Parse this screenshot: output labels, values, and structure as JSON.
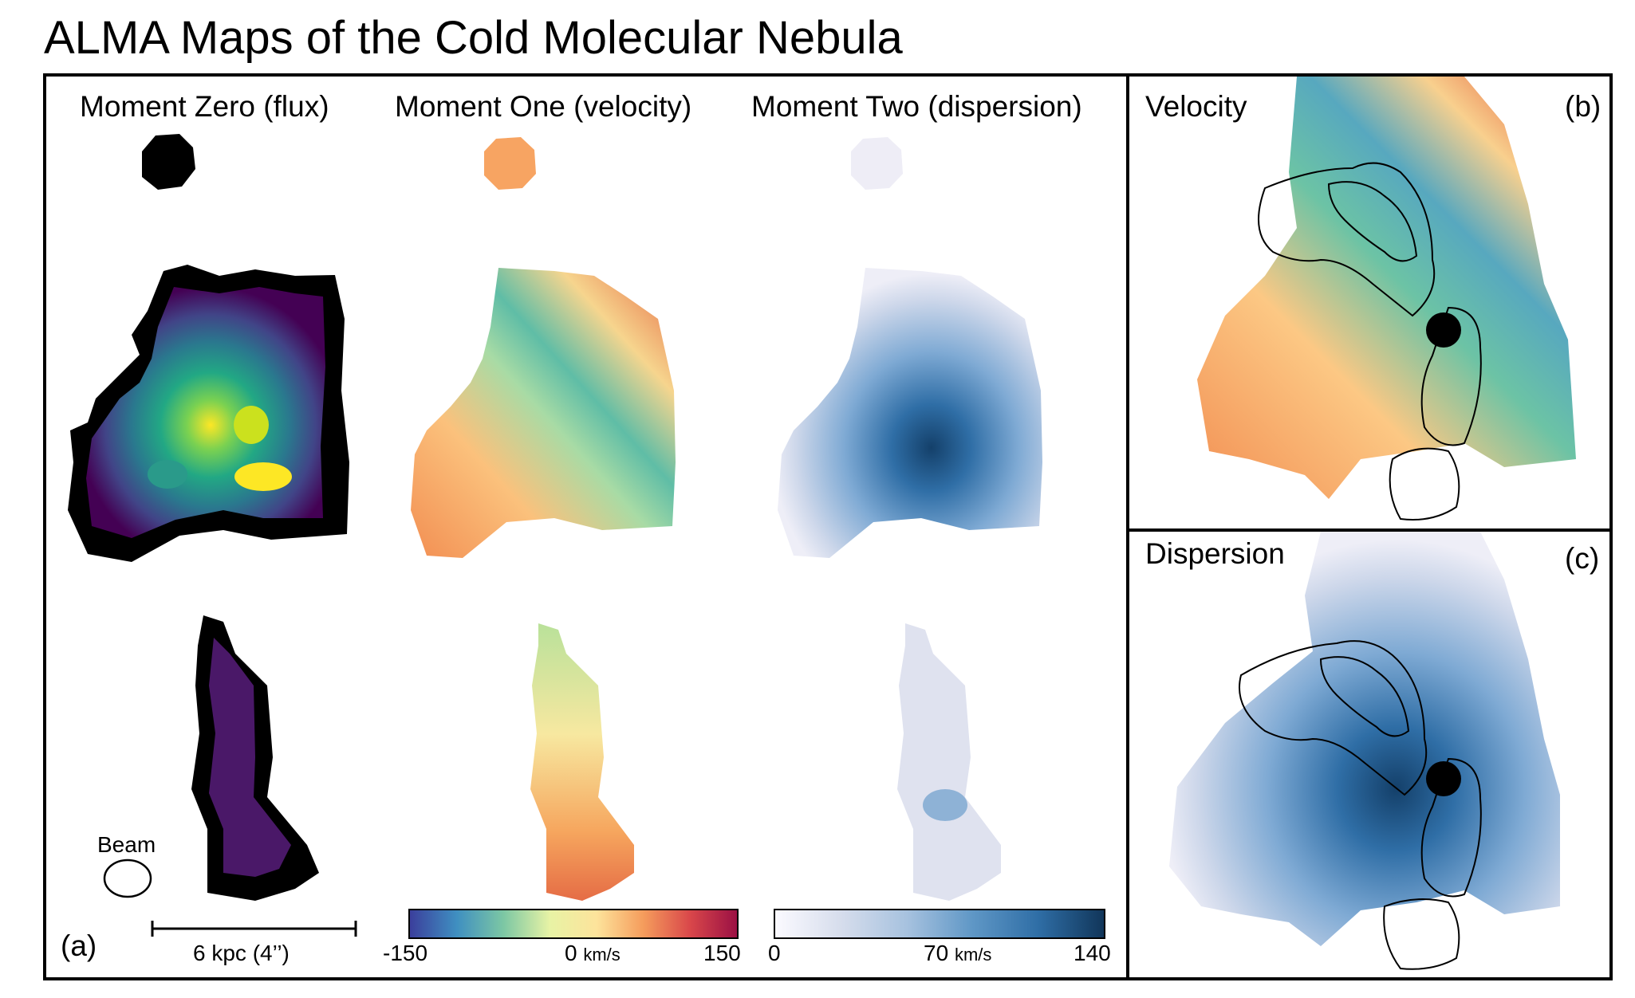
{
  "title": "ALMA Maps of the Cold Molecular Nebula",
  "panel_a": {
    "tag": "(a)",
    "col_titles": [
      "Moment Zero (flux)",
      "Moment One (velocity)",
      "Moment Two (dispersion)"
    ],
    "beam_label": "Beam",
    "scale_label": "6 kpc (4’’)"
  },
  "colorbars": {
    "velocity": {
      "min": "-150",
      "mid": "0",
      "max": "150",
      "unit": "km/s",
      "colors": [
        "#3b3f9c",
        "#3f8fc1",
        "#7cc7a4",
        "#e8f3a5",
        "#fde39b",
        "#f59c5c",
        "#d9474a",
        "#9b1044"
      ]
    },
    "dispersion": {
      "min": "0",
      "mid": "70",
      "max": "140",
      "unit": "km/s",
      "colors": [
        "#fbfaff",
        "#d6ddec",
        "#a7c2df",
        "#5f97c6",
        "#2f6ea6",
        "#11365a"
      ]
    }
  },
  "panel_b": {
    "label": "Velocity",
    "tag": "(b)"
  },
  "panel_c": {
    "label": "Dispersion",
    "tag": "(c)"
  }
}
